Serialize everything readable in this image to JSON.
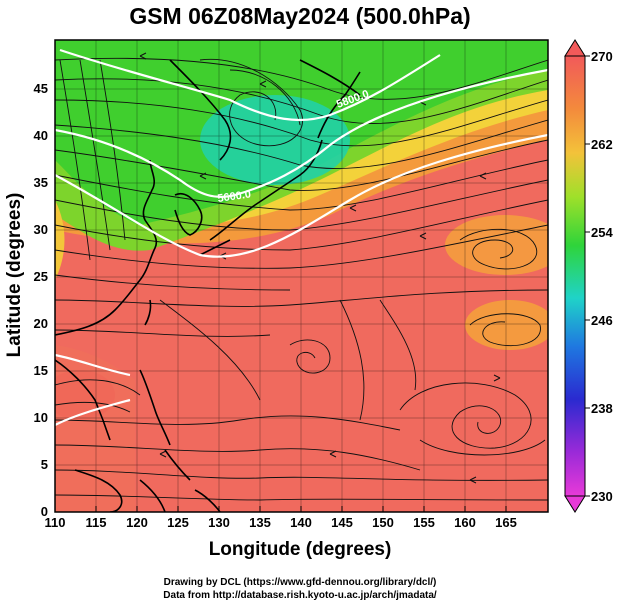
{
  "title": "GSM 06Z08May2024 (500.0hPa)",
  "xlabel": "Longitude (degrees)",
  "ylabel": "Latitude (degrees)",
  "x_ticks": [
    "110",
    "115",
    "120",
    "125",
    "130",
    "135",
    "140",
    "145",
    "150",
    "155",
    "160",
    "165"
  ],
  "y_ticks": [
    "0",
    "5",
    "10",
    "15",
    "20",
    "25",
    "30",
    "35",
    "40",
    "45"
  ],
  "colorbar": {
    "labels": [
      "270",
      "262",
      "254",
      "246",
      "238",
      "230"
    ],
    "range": [
      230,
      270
    ]
  },
  "contour_labels": [
    "5600.0",
    "5800.0"
  ],
  "credits": {
    "line1": "Drawing by DCL (https://www.gfd-dennou.org/library/dcl/)",
    "line2": "Data from http://database.rish.kyoto-u.ac.jp/arch/jmadata/"
  },
  "colors": {
    "warm_red": "#f06a5e",
    "orange": "#f5a23a",
    "yellow": "#f5d63a",
    "green": "#3ecf2e",
    "teal": "#1fd0a0",
    "blue": "#2a4dd8",
    "magenta": "#e03ad8"
  }
}
